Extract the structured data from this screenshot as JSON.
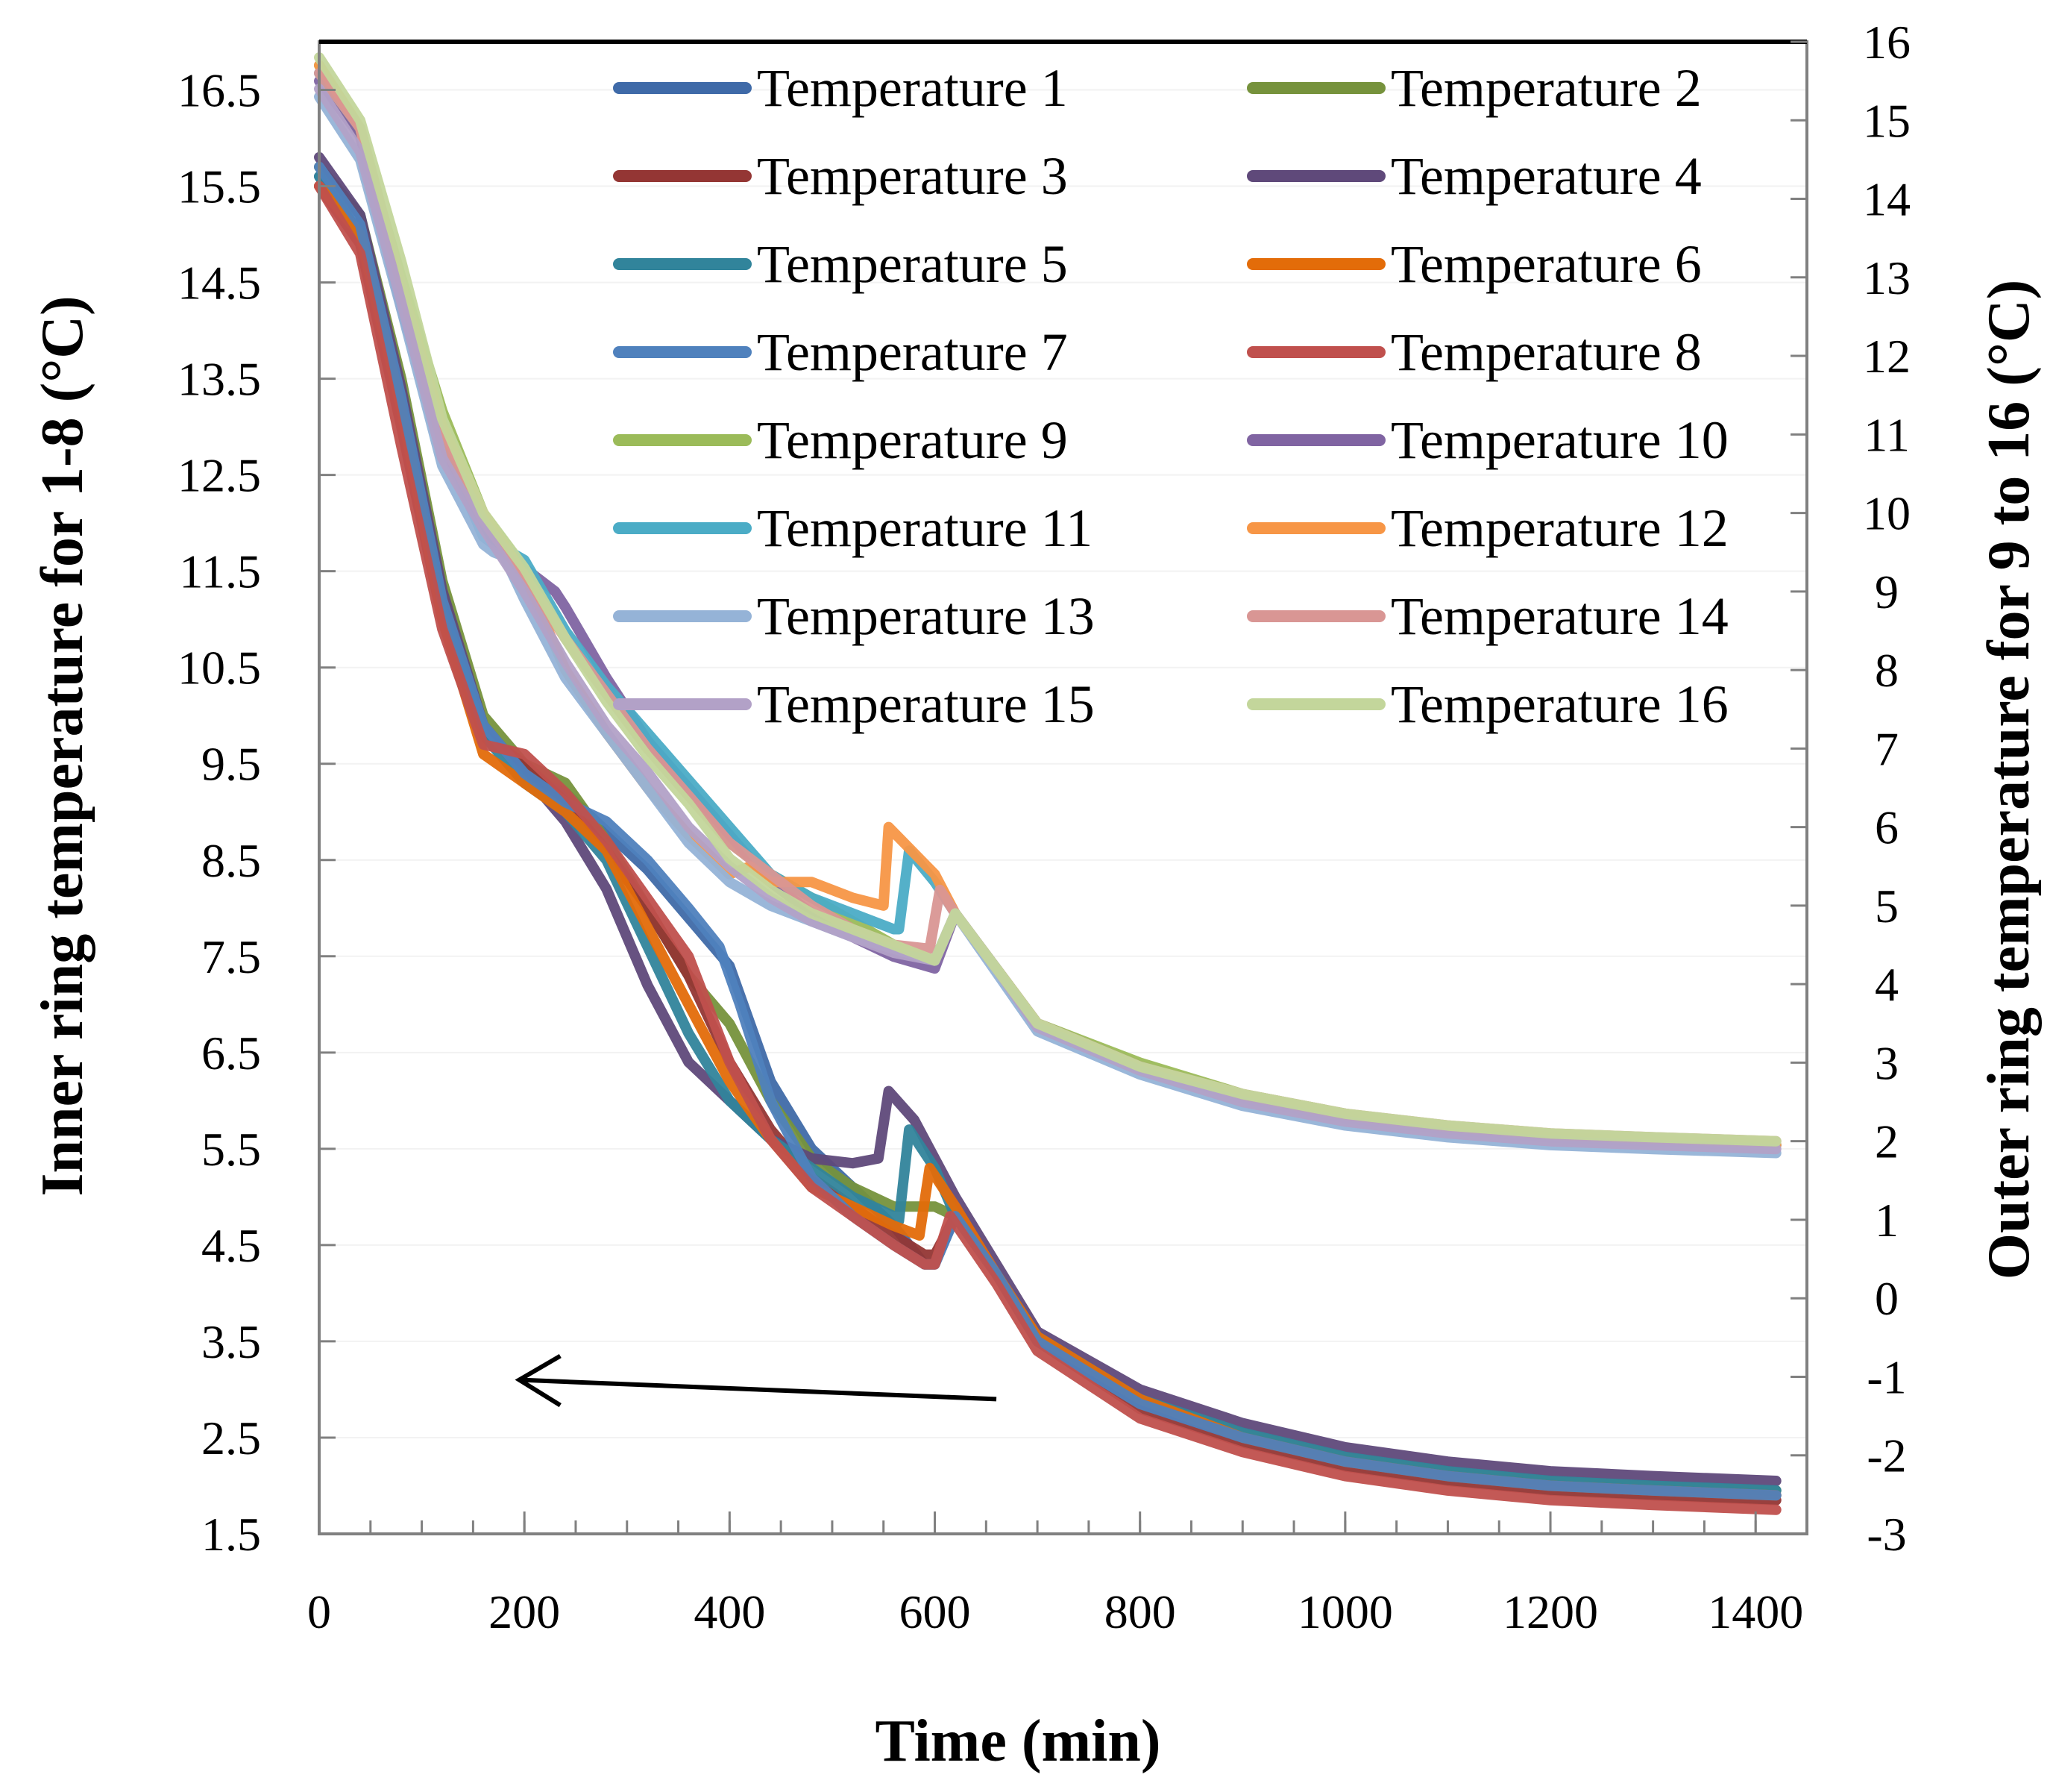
{
  "chart_data": {
    "type": "line",
    "xlabel": "Time (min)",
    "ylabel_left": "Inner ring temperature for 1-8 (°C)",
    "ylabel_right": "Outer ring temperature for 9 to 16 (°C)",
    "xlim": [
      0,
      1450
    ],
    "ylim_left": [
      1.5,
      17.0
    ],
    "ylim_right": [
      -3,
      16
    ],
    "x_ticks": [
      0,
      200,
      400,
      600,
      800,
      1000,
      1200,
      1400
    ],
    "x_tick_labels": [
      "0",
      "200",
      "400",
      "600",
      "800",
      "1000",
      "1200",
      "1400"
    ],
    "y_left_ticks": [
      1.5,
      2.5,
      3.5,
      4.5,
      5.5,
      6.5,
      7.5,
      8.5,
      9.5,
      10.5,
      11.5,
      12.5,
      13.5,
      14.5,
      15.5,
      16.5
    ],
    "y_left_tick_labels": [
      "1.5",
      "2.5",
      "3.5",
      "4.5",
      "5.5",
      "6.5",
      "7.5",
      "8.5",
      "9.5",
      "10.5",
      "11.5",
      "12.5",
      "13.5",
      "14.5",
      "15.5",
      "16.5"
    ],
    "y_right_ticks": [
      -3,
      -2,
      -1,
      0,
      1,
      2,
      3,
      4,
      5,
      6,
      7,
      8,
      9,
      10,
      11,
      12,
      13,
      14,
      15,
      16
    ],
    "y_right_tick_labels": [
      "-3",
      "-2",
      "-1",
      "0",
      "1",
      "2",
      "3",
      "4",
      "5",
      "6",
      "7",
      "8",
      "9",
      "10",
      "11",
      "12",
      "13",
      "14",
      "15",
      "16"
    ],
    "legend_location": "upper-right, two columns",
    "annotation": {
      "type": "arrow",
      "direction": "left",
      "meaning": "lower curve group refers to left axis",
      "x_from": 660,
      "x_to": 195,
      "y_left_from": 2.9,
      "y_left_to": 3.1
    },
    "series": [
      {
        "name": "Temperature 1",
        "axis": "left",
        "color": "#3F6AA8",
        "x": [
          0,
          40,
          80,
          120,
          160,
          200,
          240,
          280,
          320,
          360,
          400,
          440,
          480,
          520,
          560,
          590,
          600,
          620,
          660,
          700,
          800,
          900,
          1000,
          1100,
          1200,
          1300,
          1420
        ],
        "y": [
          15.6,
          15.0,
          13.2,
          11.2,
          9.9,
          9.4,
          9.2,
          8.8,
          8.4,
          7.9,
          7.4,
          6.2,
          5.5,
          5.1,
          4.7,
          4.3,
          4.3,
          4.8,
          4.2,
          3.5,
          2.85,
          2.5,
          2.25,
          2.1,
          2.0,
          1.95,
          1.9
        ]
      },
      {
        "name": "Temperature 2",
        "axis": "left",
        "color": "#76923C",
        "x": [
          0,
          40,
          80,
          120,
          160,
          200,
          240,
          280,
          320,
          360,
          400,
          440,
          480,
          520,
          560,
          580,
          600,
          620,
          660,
          700,
          800,
          900,
          1000,
          1100,
          1200,
          1300,
          1420
        ],
        "y": [
          15.7,
          15.2,
          13.5,
          11.4,
          10.0,
          9.5,
          9.3,
          8.7,
          8.0,
          7.3,
          6.8,
          6.0,
          5.4,
          5.1,
          4.9,
          4.9,
          4.9,
          4.8,
          4.2,
          3.55,
          2.9,
          2.55,
          2.3,
          2.15,
          2.05,
          2.0,
          1.95
        ]
      },
      {
        "name": "Temperature 3",
        "axis": "left",
        "color": "#943634",
        "x": [
          0,
          40,
          80,
          120,
          160,
          200,
          240,
          280,
          320,
          360,
          400,
          440,
          480,
          520,
          560,
          590,
          600,
          620,
          660,
          700,
          800,
          900,
          1000,
          1100,
          1200,
          1300,
          1420
        ],
        "y": [
          15.5,
          14.9,
          13.0,
          11.0,
          9.8,
          9.5,
          9.1,
          8.6,
          8.0,
          7.3,
          6.4,
          5.7,
          5.2,
          4.9,
          4.6,
          4.4,
          4.4,
          4.8,
          4.2,
          3.5,
          2.8,
          2.45,
          2.2,
          2.05,
          1.95,
          1.9,
          1.85
        ]
      },
      {
        "name": "Temperature 4",
        "axis": "left",
        "color": "#5F497A",
        "x": [
          0,
          40,
          80,
          120,
          160,
          200,
          240,
          280,
          320,
          360,
          400,
          440,
          480,
          520,
          545,
          555,
          580,
          620,
          660,
          700,
          800,
          900,
          1000,
          1100,
          1200,
          1300,
          1420
        ],
        "y": [
          15.8,
          15.2,
          13.4,
          11.3,
          9.9,
          9.4,
          8.9,
          8.2,
          7.2,
          6.4,
          6.0,
          5.6,
          5.4,
          5.35,
          5.4,
          6.1,
          5.8,
          5.0,
          4.3,
          3.6,
          3.0,
          2.65,
          2.4,
          2.25,
          2.15,
          2.1,
          2.05
        ]
      },
      {
        "name": "Temperature 5",
        "axis": "left",
        "color": "#31849B",
        "x": [
          0,
          40,
          80,
          120,
          160,
          200,
          240,
          280,
          320,
          360,
          400,
          440,
          480,
          520,
          560,
          565,
          575,
          600,
          620,
          660,
          700,
          800,
          900,
          1000,
          1100,
          1200,
          1300,
          1420
        ],
        "y": [
          15.6,
          15.0,
          13.2,
          11.1,
          9.8,
          9.3,
          9.0,
          8.5,
          7.6,
          6.7,
          6.0,
          5.6,
          5.3,
          5.0,
          4.8,
          4.75,
          5.7,
          5.3,
          4.8,
          4.2,
          3.55,
          2.9,
          2.55,
          2.3,
          2.15,
          2.05,
          2.0,
          1.95
        ]
      },
      {
        "name": "Temperature 6",
        "axis": "left",
        "color": "#E36C09",
        "x": [
          0,
          40,
          80,
          120,
          160,
          200,
          240,
          280,
          320,
          360,
          400,
          440,
          480,
          520,
          560,
          585,
          595,
          620,
          660,
          700,
          800,
          900,
          1000,
          1100,
          1200,
          1300,
          1420
        ],
        "y": [
          15.5,
          15.0,
          13.2,
          11.0,
          9.6,
          9.3,
          9.0,
          8.6,
          7.8,
          7.0,
          6.2,
          5.6,
          5.1,
          4.9,
          4.7,
          4.6,
          5.3,
          4.9,
          4.2,
          3.55,
          2.9,
          2.5,
          2.25,
          2.1,
          2.0,
          1.95,
          1.9
        ]
      },
      {
        "name": "Temperature 7",
        "axis": "left",
        "color": "#4F81BD",
        "x": [
          0,
          40,
          80,
          120,
          160,
          200,
          240,
          280,
          320,
          360,
          390,
          410,
          440,
          480,
          520,
          560,
          590,
          600,
          620,
          660,
          700,
          800,
          900,
          1000,
          1100,
          1200,
          1300,
          1420
        ],
        "y": [
          15.7,
          15.1,
          13.3,
          11.2,
          9.9,
          9.4,
          9.1,
          8.9,
          8.5,
          8.0,
          7.6,
          7.0,
          6.0,
          5.2,
          4.8,
          4.5,
          4.3,
          4.3,
          4.8,
          4.2,
          3.5,
          2.85,
          2.5,
          2.25,
          2.1,
          2.0,
          1.95,
          1.9
        ]
      },
      {
        "name": "Temperature 8",
        "axis": "left",
        "color": "#C0504D",
        "x": [
          0,
          40,
          80,
          120,
          160,
          200,
          240,
          280,
          320,
          360,
          400,
          440,
          480,
          520,
          560,
          590,
          600,
          615,
          660,
          700,
          800,
          900,
          1000,
          1100,
          1200,
          1300,
          1420
        ],
        "y": [
          15.5,
          14.8,
          12.8,
          10.9,
          9.7,
          9.6,
          9.2,
          8.7,
          8.1,
          7.5,
          6.4,
          5.6,
          5.1,
          4.8,
          4.5,
          4.3,
          4.3,
          4.8,
          4.1,
          3.4,
          2.7,
          2.35,
          2.1,
          1.95,
          1.85,
          1.8,
          1.75
        ]
      },
      {
        "name": "Temperature 9",
        "axis": "right",
        "color": "#9BBB59",
        "x": [
          0,
          40,
          80,
          120,
          160,
          200,
          240,
          280,
          320,
          360,
          400,
          440,
          480,
          520,
          560,
          600,
          620,
          660,
          700,
          800,
          900,
          1000,
          1100,
          1200,
          1300,
          1420
        ],
        "y": [
          15.7,
          14.8,
          13.0,
          11.3,
          10.0,
          9.3,
          8.4,
          7.7,
          7.0,
          6.5,
          5.8,
          5.4,
          5.1,
          4.8,
          4.5,
          4.3,
          4.9,
          4.2,
          3.5,
          3.0,
          2.6,
          2.35,
          2.15,
          2.05,
          2.0,
          1.95
        ]
      },
      {
        "name": "Temperature 10",
        "axis": "right",
        "color": "#8064A2",
        "x": [
          0,
          40,
          80,
          120,
          160,
          200,
          230,
          240,
          280,
          320,
          360,
          400,
          440,
          480,
          520,
          560,
          600,
          620,
          660,
          700,
          800,
          900,
          1000,
          1100,
          1200,
          1300,
          1420
        ],
        "y": [
          15.5,
          14.8,
          12.6,
          10.9,
          9.7,
          9.3,
          9.0,
          8.8,
          7.9,
          7.1,
          6.5,
          5.9,
          5.3,
          4.9,
          4.6,
          4.35,
          4.2,
          4.9,
          4.2,
          3.5,
          2.95,
          2.55,
          2.3,
          2.15,
          2.05,
          2.0,
          1.95
        ]
      },
      {
        "name": "Temperature 11",
        "axis": "right",
        "color": "#4BACC6",
        "x": [
          0,
          40,
          80,
          120,
          160,
          200,
          240,
          280,
          320,
          360,
          400,
          440,
          480,
          520,
          560,
          565,
          575,
          600,
          620,
          660,
          700,
          800,
          900,
          1000,
          1100,
          1200,
          1300,
          1420
        ],
        "y": [
          15.6,
          14.9,
          12.9,
          11.0,
          9.7,
          9.4,
          8.5,
          7.8,
          7.2,
          6.6,
          6.0,
          5.4,
          5.1,
          4.9,
          4.7,
          4.7,
          5.7,
          5.3,
          4.9,
          4.2,
          3.5,
          2.95,
          2.55,
          2.3,
          2.15,
          2.05,
          2.0,
          1.95
        ]
      },
      {
        "name": "Temperature 12",
        "axis": "right",
        "color": "#F79646",
        "x": [
          0,
          40,
          80,
          120,
          160,
          200,
          240,
          280,
          320,
          360,
          400,
          420,
          440,
          480,
          520,
          550,
          555,
          570,
          600,
          620,
          660,
          700,
          800,
          900,
          1000,
          1100,
          1200,
          1300,
          1420
        ],
        "y": [
          15.7,
          14.9,
          12.9,
          11.1,
          10.0,
          9.2,
          8.0,
          7.2,
          6.5,
          5.9,
          5.4,
          5.5,
          5.3,
          5.3,
          5.1,
          5.0,
          6.0,
          5.8,
          5.4,
          4.9,
          4.2,
          3.5,
          2.95,
          2.55,
          2.3,
          2.15,
          2.05,
          2.0,
          1.95
        ]
      },
      {
        "name": "Temperature 13",
        "axis": "right",
        "color": "#95B3D7",
        "x": [
          0,
          40,
          80,
          120,
          160,
          170,
          180,
          200,
          240,
          280,
          320,
          360,
          400,
          440,
          480,
          520,
          560,
          600,
          620,
          660,
          700,
          800,
          900,
          1000,
          1100,
          1200,
          1300,
          1420
        ],
        "y": [
          15.3,
          14.5,
          12.6,
          10.6,
          9.6,
          9.5,
          9.45,
          8.9,
          7.9,
          7.2,
          6.5,
          5.8,
          5.3,
          5.0,
          4.8,
          4.6,
          4.45,
          4.3,
          4.9,
          4.15,
          3.4,
          2.85,
          2.45,
          2.2,
          2.05,
          1.95,
          1.9,
          1.85
        ]
      },
      {
        "name": "Temperature 14",
        "axis": "right",
        "color": "#D99694",
        "x": [
          0,
          40,
          80,
          120,
          160,
          200,
          240,
          280,
          320,
          360,
          400,
          440,
          480,
          520,
          560,
          595,
          605,
          620,
          660,
          700,
          800,
          900,
          1000,
          1100,
          1200,
          1300,
          1420
        ],
        "y": [
          15.6,
          14.9,
          12.9,
          10.9,
          9.9,
          9.2,
          8.4,
          7.7,
          7.0,
          6.4,
          5.8,
          5.4,
          5.0,
          4.7,
          4.5,
          4.45,
          5.2,
          4.9,
          4.2,
          3.5,
          2.95,
          2.6,
          2.35,
          2.2,
          2.1,
          2.05,
          2.0
        ]
      },
      {
        "name": "Temperature 15",
        "axis": "right",
        "color": "#B2A1C7",
        "x": [
          0,
          40,
          80,
          120,
          160,
          200,
          240,
          280,
          320,
          360,
          400,
          440,
          480,
          520,
          560,
          600,
          620,
          660,
          700,
          800,
          900,
          1000,
          1100,
          1200,
          1300,
          1420
        ],
        "y": [
          15.4,
          14.6,
          12.7,
          10.7,
          9.8,
          9.0,
          8.1,
          7.3,
          6.7,
          6.0,
          5.5,
          5.1,
          4.8,
          4.6,
          4.4,
          4.3,
          4.9,
          4.2,
          3.45,
          2.9,
          2.5,
          2.25,
          2.1,
          2.0,
          1.95,
          1.9
        ]
      },
      {
        "name": "Temperature 16",
        "axis": "right",
        "color": "#C3D69B",
        "x": [
          0,
          40,
          80,
          120,
          160,
          200,
          240,
          280,
          320,
          360,
          400,
          440,
          480,
          520,
          560,
          600,
          620,
          660,
          700,
          800,
          900,
          1000,
          1100,
          1200,
          1300,
          1420
        ],
        "y": [
          15.8,
          15.0,
          13.2,
          11.2,
          10.0,
          9.3,
          8.4,
          7.6,
          6.9,
          6.3,
          5.6,
          5.2,
          4.9,
          4.7,
          4.5,
          4.3,
          4.9,
          4.2,
          3.5,
          2.95,
          2.6,
          2.35,
          2.2,
          2.1,
          2.05,
          2.0
        ]
      }
    ]
  }
}
